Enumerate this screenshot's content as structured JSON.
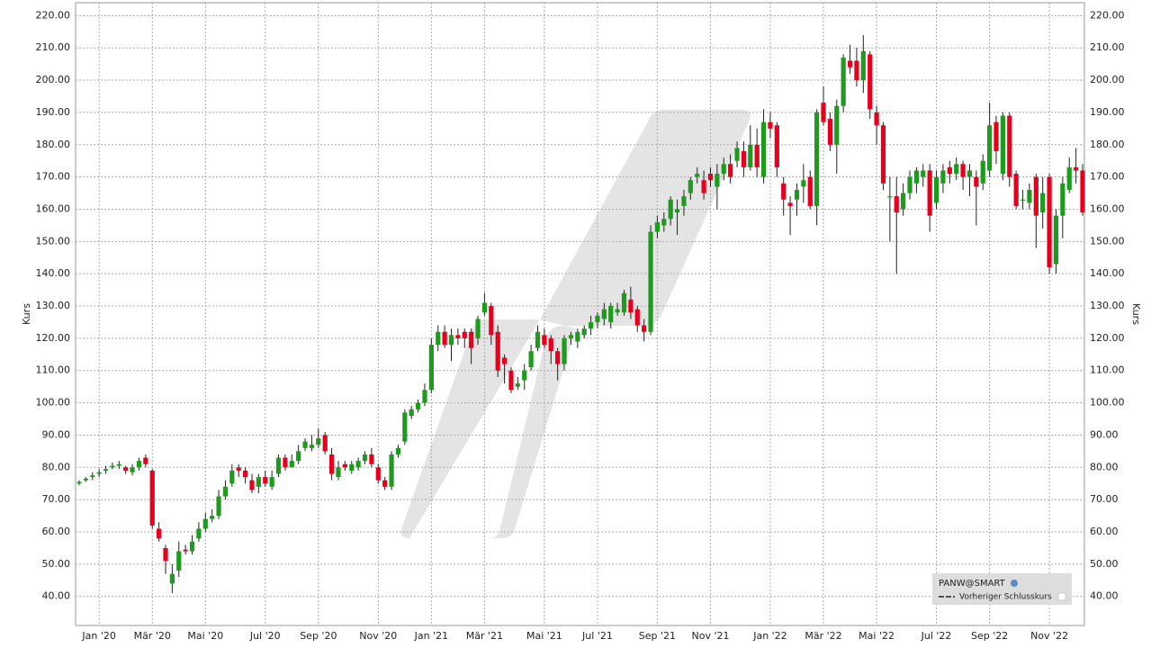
{
  "chart_data": {
    "type": "candlestick",
    "y_label": "Kurs",
    "ylim": [
      31,
      224
    ],
    "yticks": [
      {
        "value": 40,
        "label": "40.00"
      },
      {
        "value": 50,
        "label": "50.00"
      },
      {
        "value": 60,
        "label": "60.00"
      },
      {
        "value": 70,
        "label": "70.00"
      },
      {
        "value": 80,
        "label": "80.00"
      },
      {
        "value": 90,
        "label": "90.00"
      },
      {
        "value": 100,
        "label": "100.00"
      },
      {
        "value": 110,
        "label": "110.00"
      },
      {
        "value": 120,
        "label": "120.00"
      },
      {
        "value": 130,
        "label": "130.00"
      },
      {
        "value": 140,
        "label": "140.00"
      },
      {
        "value": 150,
        "label": "150.00"
      },
      {
        "value": 160,
        "label": "160.00"
      },
      {
        "value": 170,
        "label": "170.00"
      },
      {
        "value": 180,
        "label": "180.00"
      },
      {
        "value": 190,
        "label": "190.00"
      },
      {
        "value": 200,
        "label": "200.00"
      },
      {
        "value": 210,
        "label": "210.00"
      },
      {
        "value": 220,
        "label": "220.00"
      }
    ],
    "grid": true,
    "up_color": "#1e9b1e",
    "down_color": "#e6001e",
    "legend": {
      "series_name": "PANW@SMART",
      "previous_close": "Vorheriger Schlusskurs"
    },
    "categories": [
      null,
      null,
      null,
      "Jan '20",
      null,
      null,
      null,
      null,
      null,
      null,
      null,
      "Mär '20",
      null,
      null,
      null,
      null,
      null,
      null,
      null,
      "Mai '20",
      null,
      null,
      null,
      null,
      null,
      null,
      null,
      null,
      "Jul '20",
      null,
      null,
      null,
      null,
      null,
      null,
      null,
      "Sep '20",
      null,
      null,
      null,
      null,
      null,
      null,
      null,
      null,
      "Nov '20",
      null,
      null,
      null,
      null,
      null,
      null,
      null,
      "Jan '21",
      null,
      null,
      null,
      null,
      null,
      null,
      null,
      "Mär '21",
      null,
      null,
      null,
      null,
      null,
      null,
      null,
      null,
      "Mai '21",
      null,
      null,
      null,
      null,
      null,
      null,
      null,
      "Jul '21",
      null,
      null,
      null,
      null,
      null,
      null,
      null,
      null,
      "Sep '21",
      null,
      null,
      null,
      null,
      null,
      null,
      null,
      "Nov '21",
      null,
      null,
      null,
      null,
      null,
      null,
      null,
      null,
      "Jan '22",
      null,
      null,
      null,
      null,
      null,
      null,
      null,
      "Mär '22",
      null,
      null,
      null,
      null,
      null,
      null,
      null,
      "Mai '22",
      null,
      null,
      null,
      null,
      null,
      null,
      null,
      null,
      "Jul '22",
      null,
      null,
      null,
      null,
      null,
      null,
      null,
      "Sep '22",
      null,
      null,
      null,
      null,
      null,
      null,
      null,
      null,
      "Nov '22",
      null,
      null,
      null,
      null,
      null
    ],
    "open": [
      75,
      76,
      77,
      78,
      79,
      80,
      80.5,
      80,
      78.5,
      80,
      83,
      79,
      61,
      55,
      44,
      48,
      54.5,
      54,
      58,
      61,
      64,
      65,
      71,
      75,
      80,
      79,
      76,
      74,
      77,
      74,
      78,
      83,
      80,
      82,
      86,
      86,
      87,
      90,
      84,
      77,
      81,
      79,
      80,
      82,
      84,
      80,
      76,
      74,
      84,
      88,
      96,
      98,
      100,
      104,
      118,
      122,
      118,
      121,
      122,
      122,
      120,
      128,
      130,
      122,
      114,
      110,
      105,
      107,
      111,
      117,
      121,
      120,
      116,
      112,
      120,
      119,
      121,
      123,
      125,
      126,
      125,
      128,
      128,
      132,
      129,
      124,
      122,
      153,
      155,
      157,
      159,
      161,
      165,
      170,
      169,
      171,
      167,
      171,
      174,
      175,
      178,
      173,
      180,
      170,
      187,
      186,
      168,
      162,
      163,
      167,
      170,
      161,
      193,
      188,
      180,
      192,
      206,
      206,
      200,
      208,
      190,
      186,
      164,
      164,
      160,
      165,
      168,
      170,
      172,
      162,
      168,
      173,
      171,
      174,
      170,
      170,
      168,
      172,
      187,
      171,
      189,
      171,
      163,
      162,
      170,
      159,
      170,
      143,
      158,
      166,
      173,
      172
    ],
    "high": [
      76,
      77,
      78.5,
      79.5,
      80.5,
      81.5,
      82,
      80.5,
      81,
      83,
      84,
      79.5,
      63,
      56,
      50,
      57,
      56,
      59,
      63,
      66,
      67,
      73,
      76,
      81,
      81,
      80,
      78,
      78,
      79,
      79,
      84,
      84,
      84,
      87,
      89,
      90,
      92,
      91,
      86,
      82,
      82,
      82,
      83,
      85,
      86,
      81,
      77,
      85,
      87,
      98,
      99,
      101,
      106,
      120,
      124,
      124,
      123,
      123,
      123,
      123,
      127,
      134,
      131,
      124,
      115,
      111,
      108,
      112,
      118,
      124,
      123,
      121,
      117,
      121,
      122,
      123,
      124,
      127,
      128,
      131,
      131,
      131,
      135,
      136,
      130,
      126,
      155,
      158,
      159,
      164,
      163,
      166,
      170,
      173,
      172,
      173,
      174,
      176,
      177,
      181,
      181,
      186,
      185,
      191,
      190,
      187,
      170,
      164,
      168,
      174,
      172,
      191,
      198,
      190,
      194,
      208,
      211,
      210,
      214,
      209,
      192,
      187,
      170,
      170,
      168,
      172,
      173,
      174,
      174,
      172,
      174,
      175,
      176,
      175,
      174,
      172,
      177,
      193,
      189,
      190,
      190,
      172,
      166,
      168,
      171,
      170,
      171,
      160,
      170,
      176,
      179,
      174
    ],
    "low": [
      74.5,
      75.5,
      76,
      77,
      78,
      79.5,
      79.5,
      78,
      77.5,
      79,
      80,
      61,
      57,
      47,
      41,
      46,
      53,
      53,
      57,
      60,
      63,
      64,
      70,
      74,
      77,
      75,
      72,
      72,
      74,
      73,
      77,
      79,
      80,
      81,
      85,
      85,
      86,
      84,
      76,
      76,
      79,
      78,
      79,
      81,
      80,
      75,
      73,
      73,
      83,
      87,
      95,
      97,
      99,
      103,
      116,
      117,
      113,
      118,
      117,
      112,
      118,
      127,
      118,
      108,
      106,
      103,
      104,
      104,
      110,
      116,
      117,
      112,
      107,
      110,
      118,
      117,
      120,
      121,
      123,
      124,
      123,
      127,
      127,
      126,
      122,
      119,
      121,
      151,
      153,
      155,
      152,
      158,
      163,
      168,
      163,
      167,
      160,
      169,
      168,
      173,
      170,
      172,
      170,
      168,
      182,
      170,
      158,
      152,
      158,
      162,
      160,
      155,
      186,
      178,
      171,
      190,
      202,
      198,
      196,
      188,
      180,
      166,
      150,
      140,
      158,
      163,
      165,
      167,
      153,
      160,
      165,
      168,
      169,
      166,
      164,
      155,
      166,
      170,
      174,
      169,
      167,
      160,
      160,
      160,
      148,
      154,
      140,
      140,
      151,
      165,
      168,
      158
    ],
    "close": [
      75.5,
      76.5,
      77.5,
      78.5,
      79.5,
      80.5,
      81,
      79,
      80,
      82,
      81,
      62,
      58,
      51,
      47,
      54,
      54,
      57,
      61,
      64,
      65,
      71,
      74,
      79,
      79,
      77,
      73,
      77,
      75,
      77,
      83,
      80,
      82,
      85,
      88,
      87,
      89,
      85,
      78,
      80,
      80,
      81,
      82,
      84,
      81,
      76,
      74,
      84,
      86,
      97,
      98,
      100,
      104,
      118,
      122,
      118,
      121,
      120,
      120,
      117,
      126,
      131,
      121,
      110,
      112,
      104,
      106,
      110,
      116,
      122,
      118,
      116,
      112,
      120,
      121,
      122,
      123,
      125,
      127,
      129,
      130,
      129,
      134,
      128,
      124,
      122,
      153,
      156,
      157,
      163,
      160,
      164,
      169,
      171,
      165,
      169,
      171,
      174,
      170,
      179,
      173,
      180,
      173,
      187,
      185,
      173,
      163,
      161,
      166,
      169,
      161,
      190,
      187,
      180,
      192,
      207,
      204,
      200,
      209,
      191,
      186,
      168,
      164,
      159,
      165,
      170,
      172,
      172,
      158,
      170,
      172,
      171,
      174,
      170,
      172,
      167,
      175,
      186,
      178,
      189,
      170,
      161,
      163,
      166,
      158,
      165,
      142,
      158,
      168,
      173,
      172,
      159
    ]
  }
}
